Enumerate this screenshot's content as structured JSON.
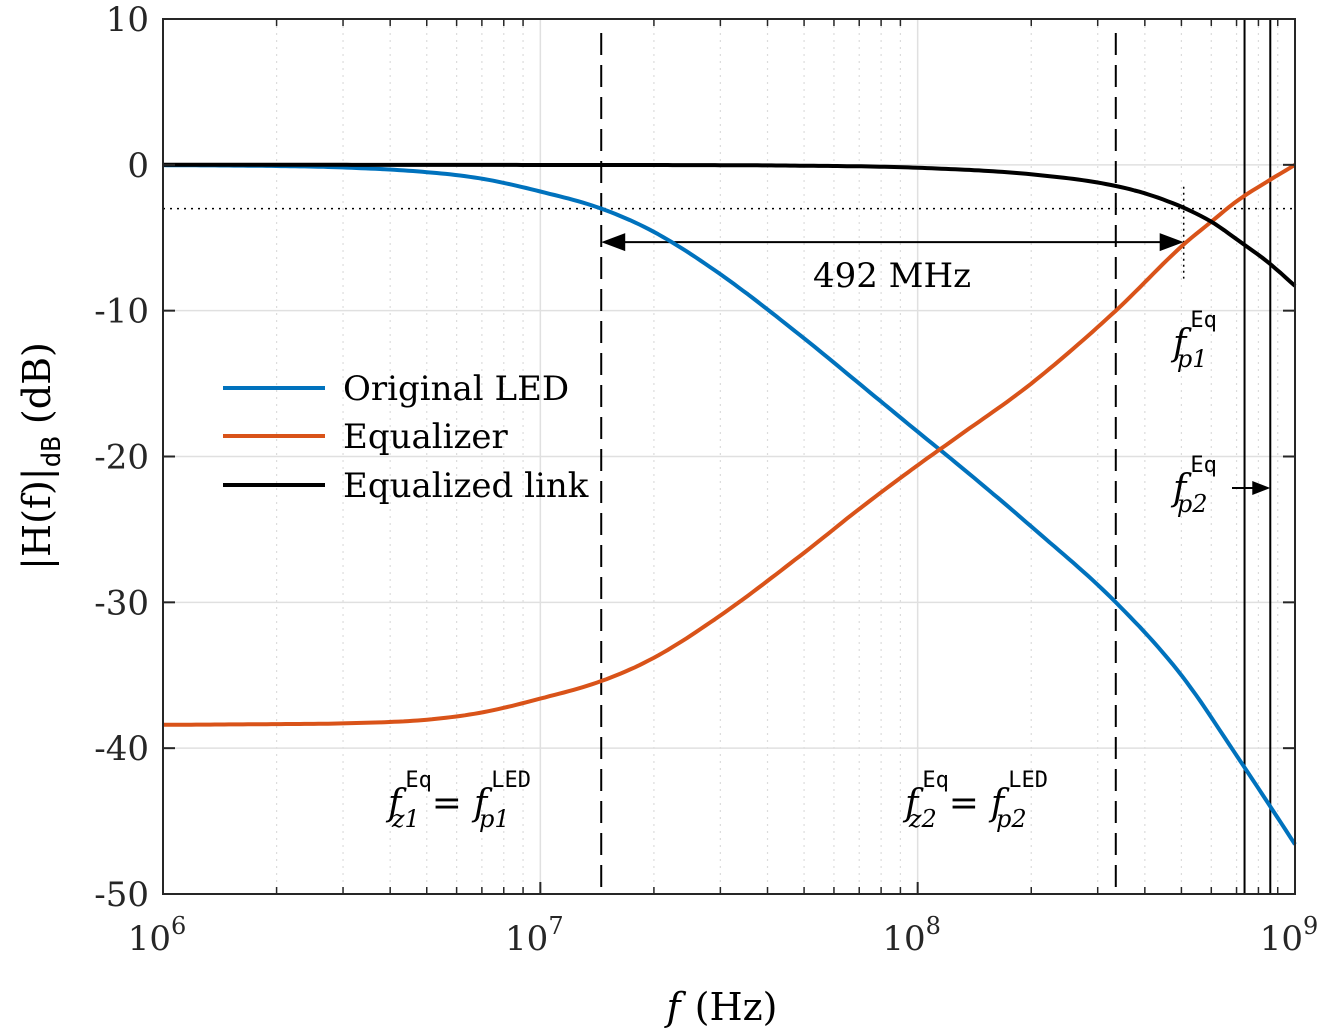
{
  "chart_data": {
    "type": "line",
    "title": "",
    "xlabel": {
      "var": "f",
      "unit": "(Hz)"
    },
    "ylabel": {
      "main": "|H(f)|",
      "sub": "dB",
      "unit": "(dB)"
    },
    "xscale": "log",
    "xlim": [
      1000000,
      1000000000
    ],
    "ylim": [
      -50,
      10
    ],
    "grid": true,
    "xticks": [
      {
        "value": 1000000,
        "base": "10",
        "exp": "6"
      },
      {
        "value": 10000000,
        "base": "10",
        "exp": "7"
      },
      {
        "value": 100000000,
        "base": "10",
        "exp": "8"
      },
      {
        "value": 1000000000,
        "base": "10",
        "exp": "9"
      }
    ],
    "yticks": [
      {
        "value": 10,
        "label": "10"
      },
      {
        "value": 0,
        "label": "0"
      },
      {
        "value": -10,
        "label": "-10"
      },
      {
        "value": -20,
        "label": "-20"
      },
      {
        "value": -30,
        "label": "-30"
      },
      {
        "value": -40,
        "label": "-40"
      },
      {
        "value": -50,
        "label": "-50"
      }
    ],
    "series": [
      {
        "name": "Original LED",
        "color": "#0072BD",
        "x": [
          1000000,
          2000000,
          3000000,
          5000000,
          7000000,
          10000000,
          14500000,
          20000000,
          30000000,
          50000000,
          70000000,
          100000000,
          130000000,
          200000000,
          335000000,
          500000000,
          700000000,
          850000000,
          1000000000
        ],
        "values": [
          -0.02,
          -0.08,
          -0.18,
          -0.5,
          -0.95,
          -1.83,
          -3.0,
          -4.6,
          -7.5,
          -11.9,
          -15.0,
          -18.3,
          -20.7,
          -24.8,
          -30.0,
          -35.0,
          -40.5,
          -43.8,
          -46.6
        ]
      },
      {
        "name": "Equalizer",
        "color": "#D95319",
        "x": [
          1000000,
          2000000,
          3000000,
          5000000,
          7000000,
          10000000,
          14500000,
          20000000,
          30000000,
          50000000,
          70000000,
          100000000,
          130000000,
          200000000,
          335000000,
          500000000,
          600000000,
          700000000,
          850000000,
          1000000000
        ],
        "values": [
          -38.4,
          -38.35,
          -38.3,
          -38.05,
          -37.55,
          -36.6,
          -35.4,
          -33.8,
          -30.9,
          -26.6,
          -23.6,
          -20.6,
          -18.5,
          -15.0,
          -10.0,
          -5.6,
          -3.9,
          -2.5,
          -1.1,
          0.0
        ]
      },
      {
        "name": "Equalized link",
        "color": "#000000",
        "x": [
          1000000,
          10000000,
          50000000,
          100000000,
          200000000,
          335000000,
          450000000,
          600000000,
          700000000,
          850000000,
          1000000000
        ],
        "values": [
          0.0,
          -0.01,
          -0.06,
          -0.2,
          -0.65,
          -1.45,
          -2.4,
          -3.9,
          -5.1,
          -6.7,
          -8.3
        ]
      }
    ],
    "reference_lines": {
      "minus3db_value": -3,
      "dashed_vertical_x": [
        14500000,
        335000000
      ],
      "solid_vertical_x": [
        735000000,
        860000000
      ],
      "dotted_vertical_x": 507000000
    },
    "bandwidth_arrow": {
      "from": 14500000,
      "to": 507000000,
      "y": -5.3,
      "label": "492 MHz"
    },
    "annotations": {
      "fz1": {
        "f": "f",
        "sub": "z1",
        "sup": "Eq",
        "eq": "=",
        "f2": "f",
        "sub2": "p1",
        "sup2": "LED"
      },
      "fz2": {
        "f": "f",
        "sub": "z2",
        "sup": "Eq",
        "eq": "=",
        "f2": "f",
        "sub2": "p2",
        "sup2": "LED"
      },
      "fp1": {
        "f": "f",
        "sub": "p1",
        "sup": "Eq"
      },
      "fp2": {
        "f": "f",
        "sub": "p2",
        "sup": "Eq"
      }
    },
    "legend": {
      "position": "left-middle",
      "entries": [
        "Original LED",
        "Equalizer",
        "Equalized link"
      ]
    }
  }
}
